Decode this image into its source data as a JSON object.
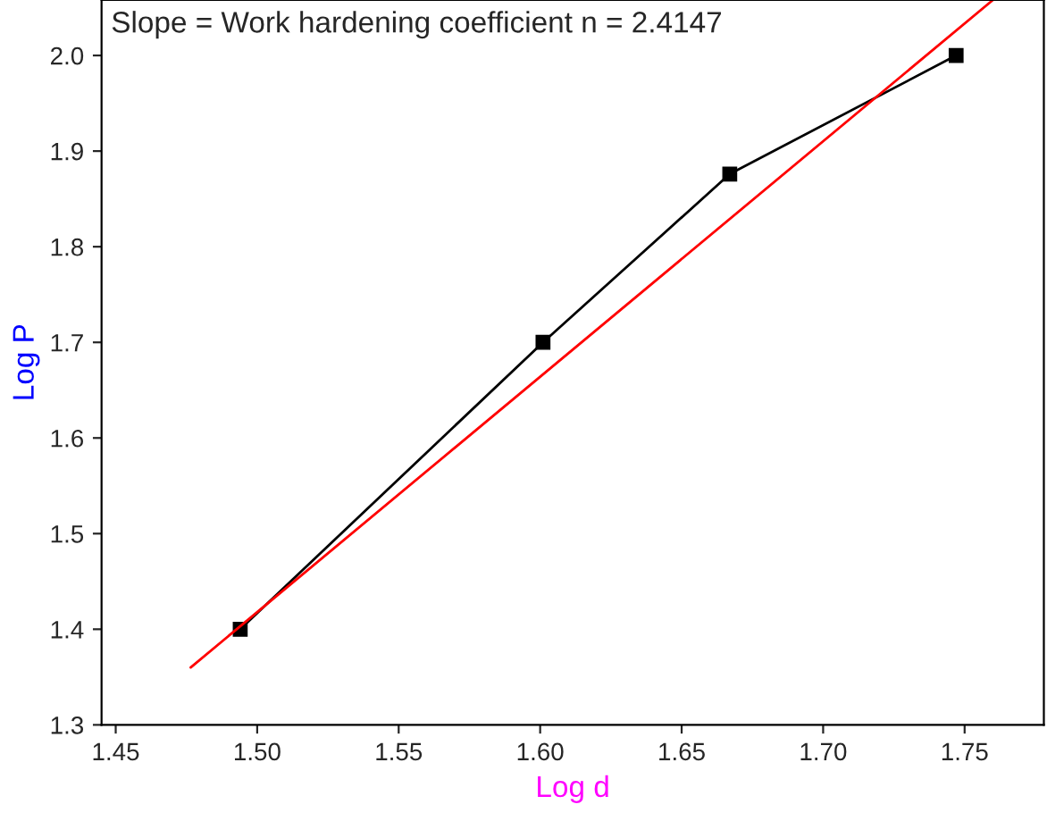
{
  "chart_data": {
    "type": "line",
    "xlabel": "Log d",
    "ylabel": "Log P",
    "annotations": [
      "Slope = Work hardening coefficient n = 2.4147"
    ],
    "series": [
      {
        "color": "#000000",
        "marker": "square",
        "x": [
          1.494,
          1.601,
          1.667,
          1.747
        ],
        "values": [
          1.4,
          1.7,
          1.876,
          2.0
        ]
      },
      {
        "color": "#ff0000",
        "marker": "none",
        "x": [
          1.4765,
          1.76
        ],
        "values": [
          1.36,
          2.058
        ]
      }
    ],
    "xlim": [
      1.445,
      1.778
    ],
    "ylim": [
      1.3,
      2.058
    ],
    "xticks": [
      {
        "value": 1.45,
        "label": "1.45"
      },
      {
        "value": 1.5,
        "label": "1.50"
      },
      {
        "value": 1.55,
        "label": "1.55"
      },
      {
        "value": 1.6,
        "label": "1.60"
      },
      {
        "value": 1.65,
        "label": "1.65"
      },
      {
        "value": 1.7,
        "label": "1.70"
      },
      {
        "value": 1.75,
        "label": "1.75"
      }
    ],
    "yticks": [
      {
        "value": 1.3,
        "label": "1.3"
      },
      {
        "value": 1.4,
        "label": "1.4"
      },
      {
        "value": 1.5,
        "label": "1.5"
      },
      {
        "value": 1.6,
        "label": "1.6"
      },
      {
        "value": 1.7,
        "label": "1.7"
      },
      {
        "value": 1.8,
        "label": "1.8"
      },
      {
        "value": 1.9,
        "label": "1.9"
      },
      {
        "value": 2.0,
        "label": "2.0"
      }
    ],
    "grid": false,
    "legend": false
  }
}
